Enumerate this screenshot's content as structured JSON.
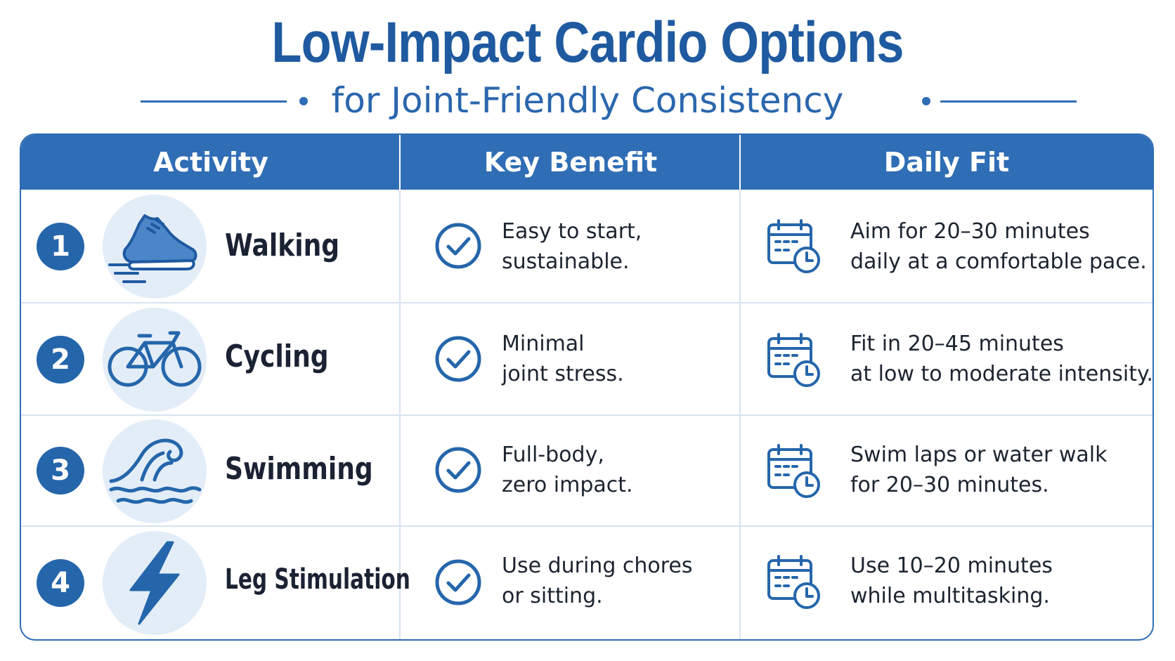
{
  "title": "Low-Impact Cardio Options",
  "subtitle": "for Joint-Friendly Consistency",
  "colors": {
    "accent": "#2f6db5",
    "icon_bg": "#e3edf8",
    "text": "#1a2233"
  },
  "table": {
    "headers": [
      "Activity",
      "Key Benefit",
      "Daily Fit"
    ],
    "rows": [
      {
        "num": "1",
        "icon": "shoe-icon",
        "activity": "Walking",
        "benefit": [
          "Easy to start,",
          "sustainable."
        ],
        "fit": [
          "Aim for 20–30 minutes",
          "daily at a comfortable pace."
        ]
      },
      {
        "num": "2",
        "icon": "bicycle-icon",
        "activity": "Cycling",
        "benefit": [
          "Minimal",
          "joint stress."
        ],
        "fit": [
          "Fit in 20–45 minutes",
          "at low to moderate intensity."
        ]
      },
      {
        "num": "3",
        "icon": "wave-icon",
        "activity": "Swimming",
        "benefit": [
          "Full-body,",
          "zero impact."
        ],
        "fit": [
          "Swim laps or water walk",
          "for 20–30 minutes."
        ]
      },
      {
        "num": "4",
        "icon": "lightning-bolt-icon",
        "activity": "Leg Stimulation",
        "benefit": [
          "Use during chores",
          "or sitting."
        ],
        "fit": [
          "Use 10–20 minutes",
          "while multitasking."
        ]
      }
    ]
  }
}
